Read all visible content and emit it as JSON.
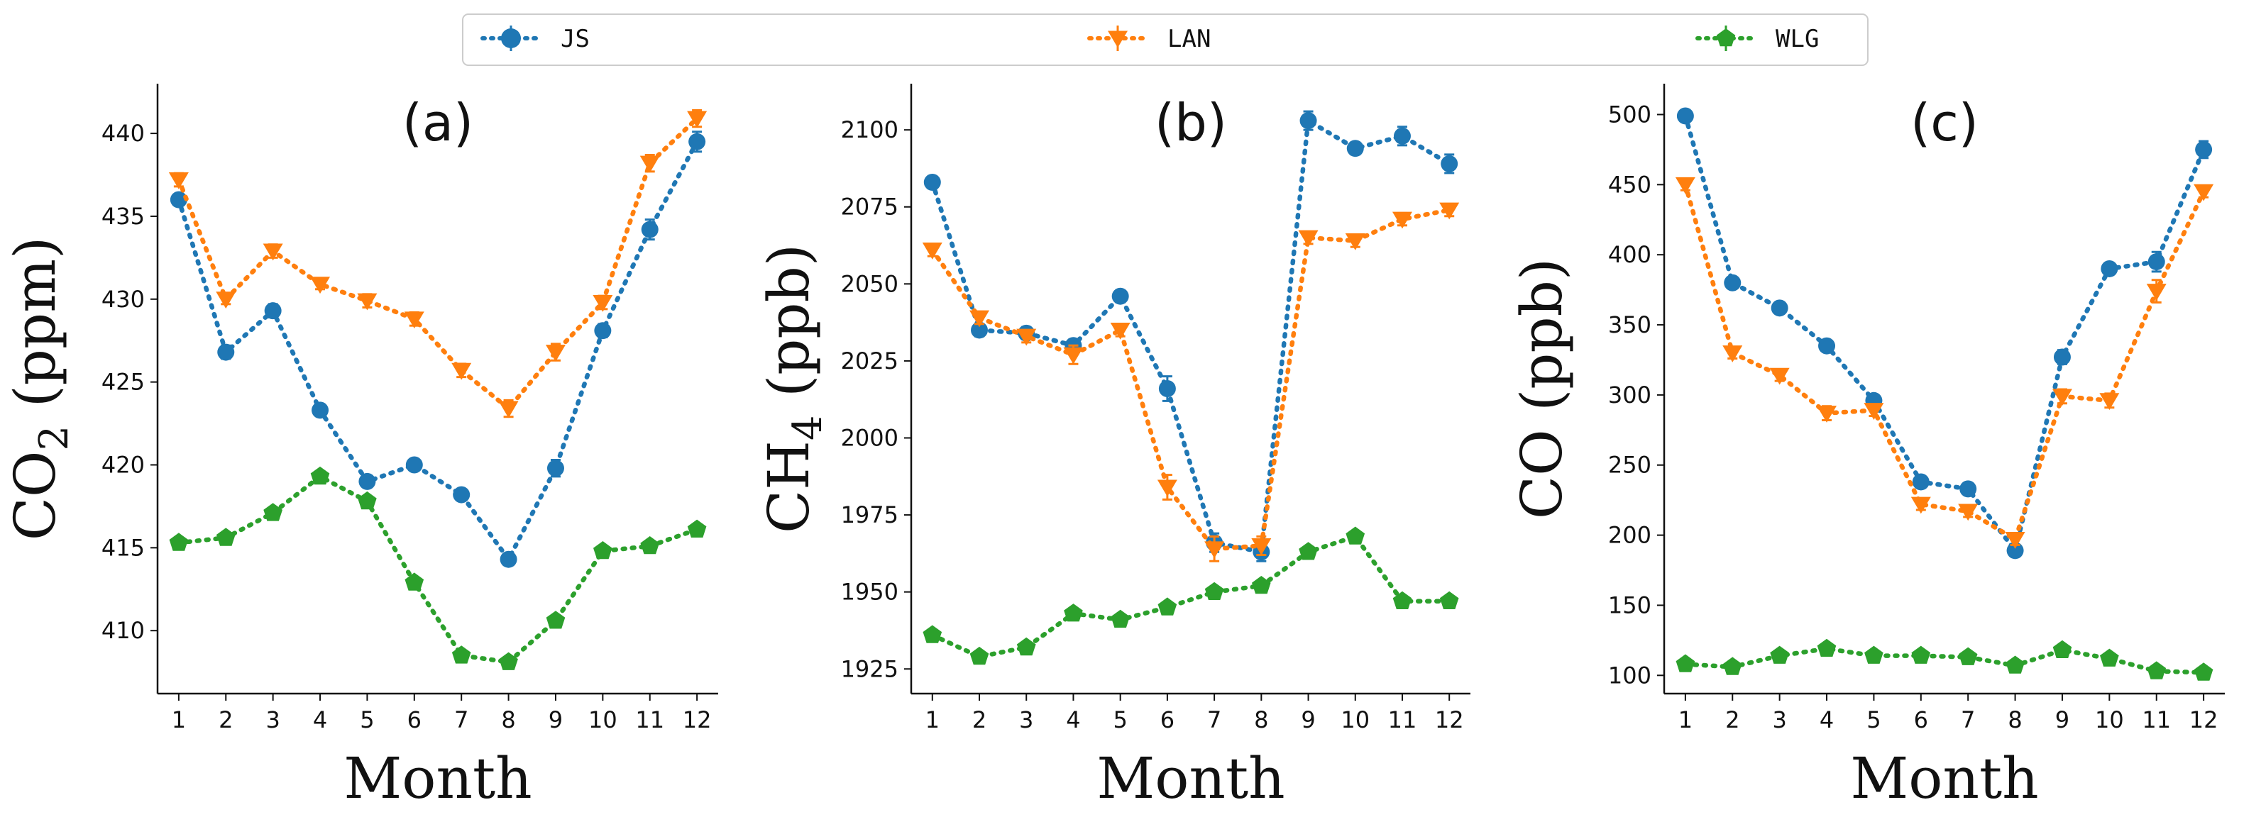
{
  "legend": [
    {
      "name": "JS",
      "color": "#1f77b4",
      "marker": "circle"
    },
    {
      "name": "LAN",
      "color": "#ff7f0e",
      "marker": "triangle-down"
    },
    {
      "name": "WLG",
      "color": "#2ca02c",
      "marker": "pentagon"
    }
  ],
  "chart_data": [
    {
      "type": "line",
      "title": "(a)",
      "xlabel": "Month",
      "ylabel": "CO2 (ppm)",
      "ylabel_main": "CO",
      "ylabel_sub": "2",
      "ylabel_unit": " (ppm)",
      "x": [
        1,
        2,
        3,
        4,
        5,
        6,
        7,
        8,
        9,
        10,
        11,
        12
      ],
      "ylim": [
        406.2,
        443.0
      ],
      "yticks": [
        410,
        415,
        420,
        425,
        430,
        435,
        440
      ],
      "series": [
        {
          "name": "JS",
          "values": [
            436.0,
            426.8,
            429.3,
            423.3,
            419.0,
            420.0,
            418.2,
            414.3,
            419.8,
            428.1,
            434.2,
            439.5
          ],
          "err": [
            0.3,
            0.4,
            0.4,
            0.3,
            0.3,
            0.3,
            0.3,
            0.3,
            0.5,
            0.4,
            0.6,
            0.6
          ]
        },
        {
          "name": "LAN",
          "values": [
            437.2,
            430.0,
            432.9,
            430.9,
            429.9,
            428.8,
            425.7,
            423.4,
            426.8,
            429.8,
            438.2,
            440.9
          ],
          "err": [
            0.4,
            0.3,
            0.4,
            0.3,
            0.4,
            0.4,
            0.4,
            0.5,
            0.5,
            0.4,
            0.5,
            0.5
          ]
        },
        {
          "name": "WLG",
          "values": [
            415.3,
            415.6,
            417.1,
            419.3,
            417.8,
            412.9,
            408.5,
            408.1,
            410.6,
            414.8,
            415.1,
            416.1
          ],
          "err": [
            0.2,
            0.2,
            0.2,
            0.2,
            0.2,
            0.2,
            0.2,
            0.2,
            0.2,
            0.2,
            0.2,
            0.2
          ]
        }
      ]
    },
    {
      "type": "line",
      "title": "(b)",
      "xlabel": "Month",
      "ylabel": "CH4 (ppb)",
      "ylabel_main": "CH",
      "ylabel_sub": "4",
      "ylabel_unit": " (ppb)",
      "x": [
        1,
        2,
        3,
        4,
        5,
        6,
        7,
        8,
        9,
        10,
        11,
        12
      ],
      "ylim": [
        1917,
        2115
      ],
      "yticks": [
        1925,
        1950,
        1975,
        2000,
        2025,
        2050,
        2075,
        2100
      ],
      "series": [
        {
          "name": "JS",
          "values": [
            2083,
            2035,
            2034,
            2030,
            2046,
            2016,
            1966,
            1963,
            2103,
            2094,
            2098,
            2089
          ],
          "err": [
            2,
            2,
            2,
            2,
            2,
            4,
            3,
            3,
            3,
            2,
            3,
            3
          ]
        },
        {
          "name": "LAN",
          "values": [
            2061,
            2039,
            2033,
            2027,
            2035,
            1984,
            1964,
            1965,
            2065,
            2064,
            2071,
            2074
          ],
          "err": [
            2,
            2,
            2,
            3,
            2,
            4,
            4,
            3,
            2,
            2,
            2,
            2
          ]
        },
        {
          "name": "WLG",
          "values": [
            1936,
            1929,
            1932,
            1943,
            1941,
            1945,
            1950,
            1952,
            1963,
            1968,
            1947,
            1947
          ],
          "err": [
            1,
            1,
            1,
            1,
            1,
            1,
            1,
            1,
            1,
            1,
            1,
            1
          ]
        }
      ]
    },
    {
      "type": "line",
      "title": "(c)",
      "xlabel": "Month",
      "ylabel": "CO (ppb)",
      "ylabel_main": "CO",
      "ylabel_sub": "",
      "ylabel_unit": " (ppb)",
      "x": [
        1,
        2,
        3,
        4,
        5,
        6,
        7,
        8,
        9,
        10,
        11,
        12
      ],
      "ylim": [
        87,
        522
      ],
      "yticks": [
        100,
        150,
        200,
        250,
        300,
        350,
        400,
        450,
        500
      ],
      "series": [
        {
          "name": "JS",
          "values": [
            499,
            380,
            362,
            335,
            296,
            238,
            233,
            189,
            327,
            390,
            395,
            475
          ],
          "err": [
            3,
            3,
            4,
            3,
            4,
            3,
            3,
            4,
            5,
            4,
            7,
            6
          ]
        },
        {
          "name": "LAN",
          "values": [
            450,
            330,
            314,
            287,
            289,
            222,
            217,
            197,
            299,
            296,
            374,
            445
          ],
          "err": [
            4,
            4,
            4,
            5,
            4,
            4,
            4,
            4,
            5,
            5,
            8,
            4
          ]
        },
        {
          "name": "WLG",
          "values": [
            108,
            106,
            114,
            119,
            114,
            114,
            113,
            107,
            118,
            112,
            103,
            102
          ],
          "err": [
            1,
            1,
            1,
            1,
            1,
            1,
            1,
            1,
            1,
            1,
            1,
            1
          ]
        }
      ]
    }
  ]
}
